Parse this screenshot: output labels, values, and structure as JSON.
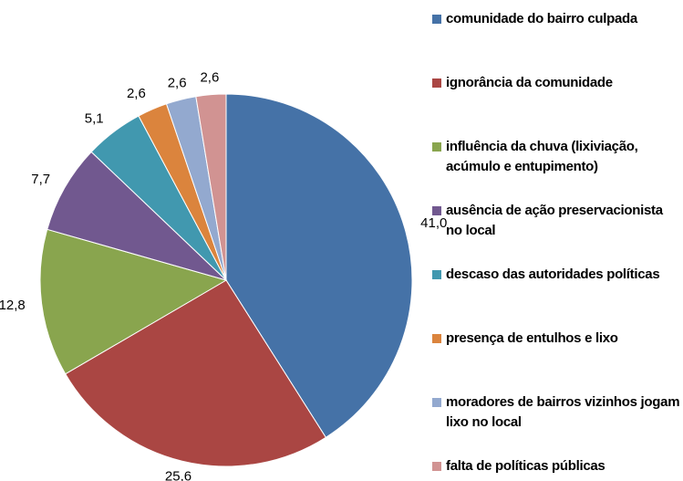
{
  "chart_data": {
    "type": "pie",
    "categories": [
      "comunidade do bairro culpada",
      "ignorância da comunidade",
      "influência da chuva (lixiviação, acúmulo e entupimento)",
      "ausência de ação preservacionista no local",
      "descaso das autoridades políticas",
      "presença de entulhos e lixo",
      "moradores de bairros vizinhos jogam lixo no local",
      "falta de políticas públicas"
    ],
    "values": [
      41.0,
      25.6,
      12.8,
      7.7,
      5.1,
      2.6,
      2.6,
      2.6
    ],
    "value_labels": [
      "41,0",
      "25,6",
      "12,8",
      "7,7",
      "5,1",
      "2,6",
      "2,6",
      "2,6"
    ],
    "colors": [
      "#4572a7",
      "#aa4643",
      "#89a54e",
      "#71588f",
      "#4198af",
      "#db843d",
      "#93a9cf",
      "#d19392"
    ],
    "legend": "right"
  }
}
